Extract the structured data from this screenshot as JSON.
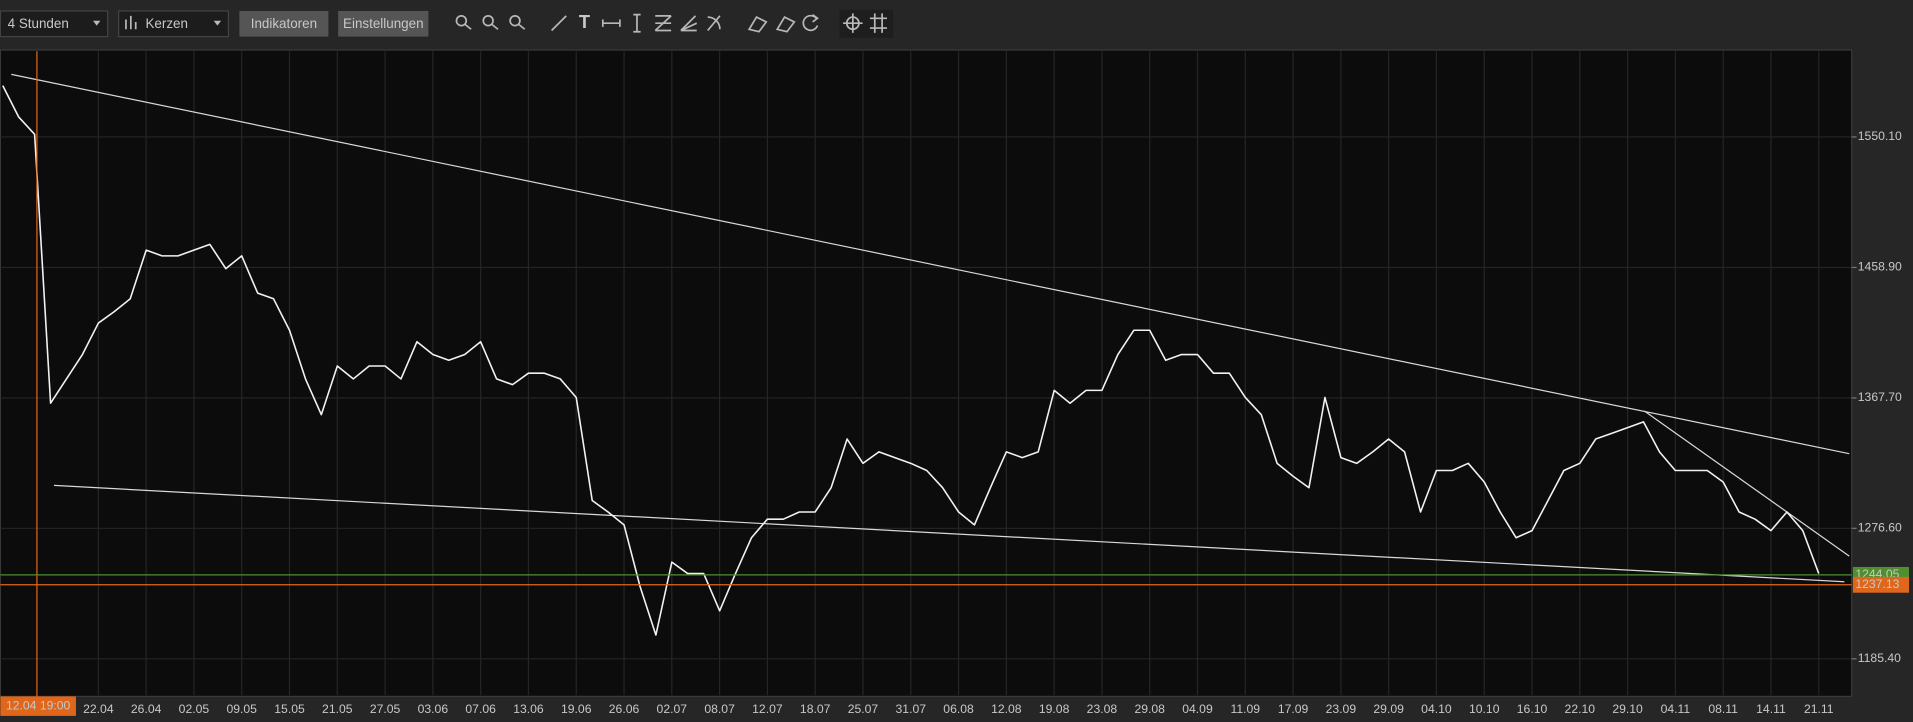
{
  "toolbar": {
    "timeframe": "4 Stunden",
    "chart_style": "Kerzen",
    "indicators_button": "Indikatoren",
    "settings_button": "Einstellungen"
  },
  "chart_data": {
    "type": "line",
    "color": "#f2f2f2",
    "crosshair_label": "12.04 19:00",
    "categories": [
      null,
      null,
      null,
      null,
      null,
      null,
      "22.04",
      null,
      null,
      "26.04",
      null,
      null,
      "02.05",
      null,
      null,
      "09.05",
      null,
      null,
      "15.05",
      null,
      null,
      "21.05",
      null,
      null,
      "27.05",
      null,
      null,
      "03.06",
      null,
      null,
      "07.06",
      null,
      null,
      "13.06",
      null,
      null,
      "19.06",
      null,
      null,
      "26.06",
      null,
      null,
      "02.07",
      null,
      null,
      "08.07",
      null,
      null,
      "12.07",
      null,
      null,
      "18.07",
      null,
      null,
      "25.07",
      null,
      null,
      "31.07",
      null,
      null,
      "06.08",
      null,
      null,
      "12.08",
      null,
      null,
      "19.08",
      null,
      null,
      "23.08",
      null,
      null,
      "29.08",
      null,
      null,
      "04.09",
      null,
      null,
      "11.09",
      null,
      null,
      "17.09",
      null,
      null,
      "23.09",
      null,
      null,
      "29.09",
      null,
      null,
      "04.10",
      null,
      null,
      "10.10",
      null,
      null,
      "16.10",
      null,
      null,
      "22.10",
      null,
      null,
      "29.10",
      null,
      null,
      "04.11",
      null,
      null,
      "08.11",
      null,
      null,
      "14.11",
      null,
      null,
      "21.11"
    ],
    "values": [
      1586,
      1564,
      1552,
      1364,
      1381,
      1398,
      1420,
      1428,
      1437,
      1471,
      1467,
      1467,
      1471,
      1475,
      1458,
      1467,
      1441,
      1437,
      1415,
      1381,
      1356,
      1390,
      1381,
      1390,
      1390,
      1381,
      1407,
      1398,
      1394,
      1398,
      1407,
      1381,
      1377,
      1385,
      1385,
      1381,
      1368,
      1296,
      1288,
      1279,
      1236,
      1202,
      1253,
      1245,
      1245,
      1219,
      1245,
      1270,
      1283,
      1283,
      1288,
      1288,
      1305,
      1339,
      1322,
      1330,
      1326,
      1322,
      1317,
      1305,
      1288,
      1279,
      1305,
      1330,
      1326,
      1330,
      1373,
      1364,
      1373,
      1373,
      1398,
      1415,
      1415,
      1394,
      1398,
      1398,
      1385,
      1385,
      1368,
      1356,
      1322,
      1313,
      1305,
      1368,
      1326,
      1322,
      1330,
      1339,
      1330,
      1288,
      1317,
      1317,
      1322,
      1309,
      1288,
      1270,
      1275,
      1296,
      1317,
      1322,
      1339,
      1343,
      1347,
      1351,
      1330,
      1317,
      1317,
      1317,
      1309,
      1288,
      1283,
      1275,
      1288,
      1275,
      1245
    ],
    "ylim": [
      1160,
      1610
    ],
    "yticks": [
      {
        "value": 1185.4,
        "label": "1185.40"
      },
      {
        "value": 1276.6,
        "label": "1276.60"
      },
      {
        "value": 1367.7,
        "label": "1367.70"
      },
      {
        "value": 1458.9,
        "label": "1458.90"
      },
      {
        "value": 1550.1,
        "label": "1550.10"
      }
    ],
    "grid": true,
    "price_lines": [
      {
        "value": 1244.05,
        "color": "#4f8f2f"
      },
      {
        "value": 1237.13,
        "color": "#e0661c"
      }
    ]
  }
}
